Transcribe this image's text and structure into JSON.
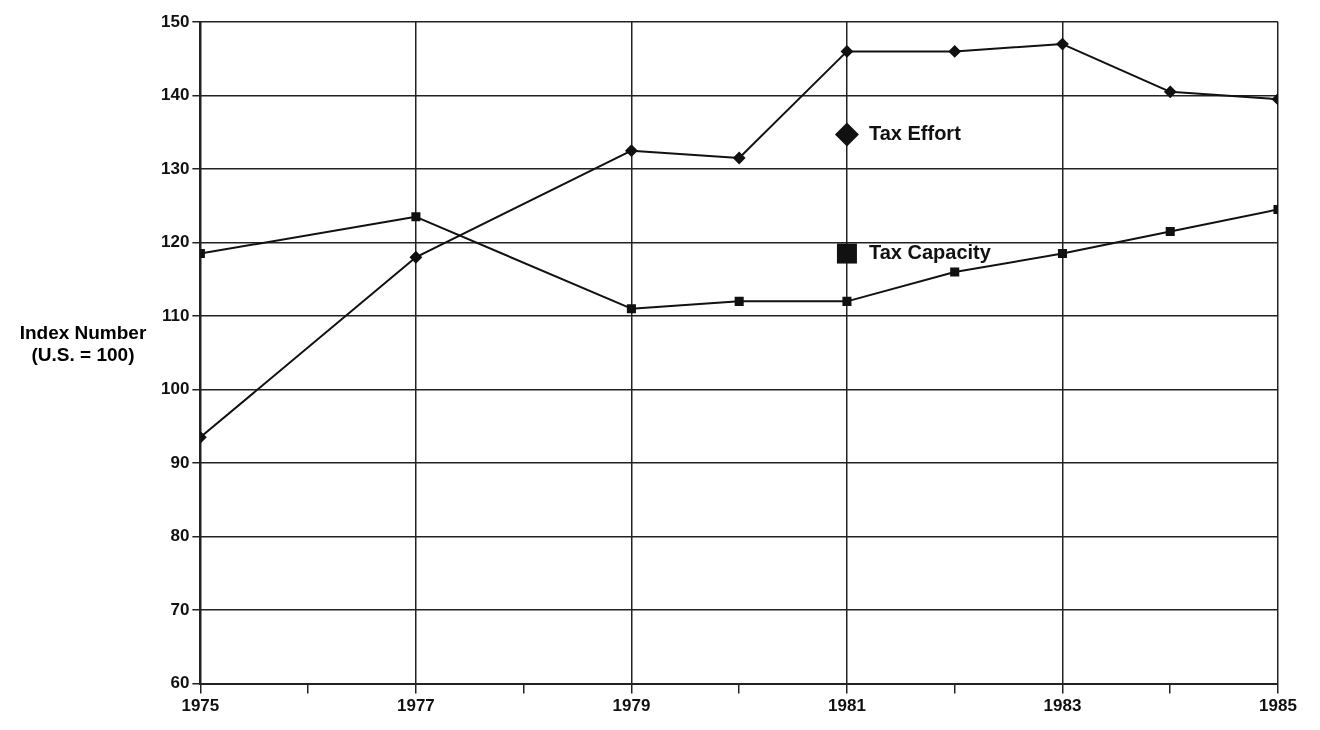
{
  "chart_data": {
    "type": "line",
    "ylabel": "Index Number (U.S. = 100)",
    "x": [
      1975,
      1977,
      1979,
      1980,
      1981,
      1982,
      1983,
      1984,
      1985
    ],
    "series": [
      {
        "name": "Tax Effort",
        "color": "#111111",
        "marker": "diamond",
        "values": [
          93.5,
          118,
          132.5,
          131.5,
          146,
          146,
          147,
          140.5,
          139.5
        ]
      },
      {
        "name": "Tax Capacity",
        "color": "#111111",
        "marker": "square",
        "values": [
          118.5,
          123.5,
          111,
          112,
          112,
          116,
          118.5,
          121.5,
          124.5
        ]
      }
    ],
    "xlim": [
      1975,
      1985
    ],
    "xticks": [
      1975,
      {
        "value": 1976,
        "label": null
      },
      1977,
      {
        "value": 1978,
        "label": null
      },
      1979,
      {
        "value": 1980,
        "label": null
      },
      1981,
      {
        "value": 1982,
        "label": null
      },
      1983,
      {
        "value": 1984,
        "label": null
      },
      1985
    ],
    "ylim": [
      60,
      150
    ],
    "yticks": [
      60,
      70,
      80,
      90,
      100,
      110,
      120,
      130,
      140,
      150
    ],
    "grid": true,
    "legend": "center",
    "line_style": "solid"
  }
}
